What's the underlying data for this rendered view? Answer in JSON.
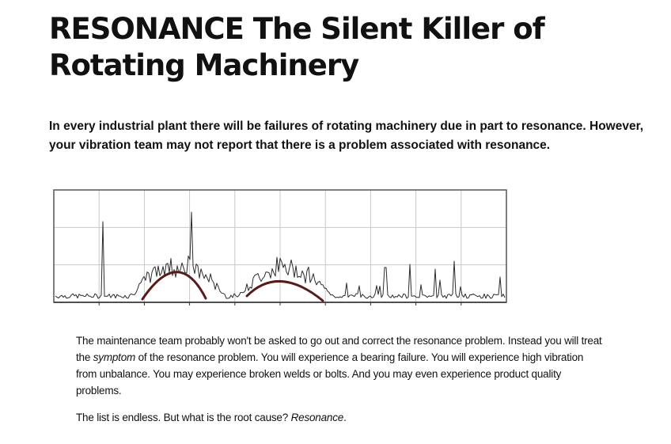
{
  "article": {
    "title": "RESONANCE The Silent Killer of Rotating Machinery",
    "intro": "In every industrial plant there will be failures of rotating machinery due in part to resonance. However, your vibration team may not report that there is a problem associated with resonance.",
    "para1": {
      "before": "The maintenance team probably won't be asked to go out and correct the resonance problem. Instead you will treat the ",
      "em": "symptom",
      "after": " of the resonance problem. You will experience a bearing failure. You will experience high vibration from unbalance. You may experience broken welds or bolts. And you may even experience product quality problems."
    },
    "para2": {
      "before": "The list is endless. But what is the root cause? ",
      "em": "Resonance",
      "after": "."
    }
  },
  "colors": {
    "text": "#111111",
    "spectrum_trace": "#2b2b2b",
    "resonance_hump": "#5a1a1a",
    "grid": "#c8c8c8",
    "frame": "#555555"
  }
}
